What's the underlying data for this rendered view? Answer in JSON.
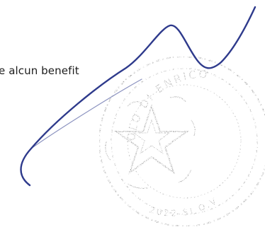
{
  "document": {
    "text_line": "e alcun benefit",
    "stamp": {
      "type": "circular-seal",
      "ring_text_top": "OLO DI ENRICO",
      "ring_text_bottom": "2022 SI O.V",
      "center": "star-emblem",
      "ink_color": "#6b6b6b"
    },
    "signature": {
      "type": "handwritten-signature",
      "ink_color": "#2e3a8c"
    }
  }
}
